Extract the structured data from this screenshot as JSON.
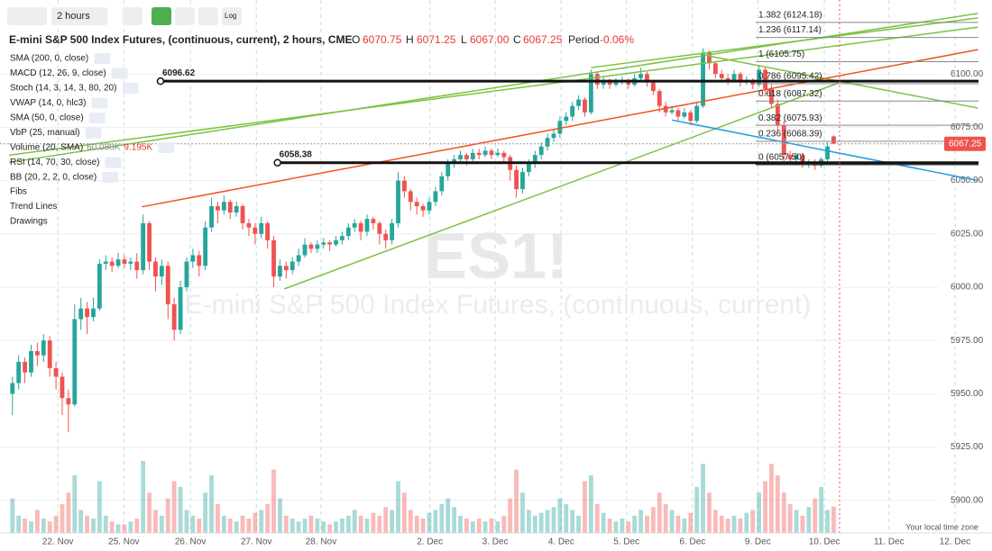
{
  "toolbar": {
    "interval": "2 hours",
    "log": "Log"
  },
  "header": {
    "title": "E-mini S&P 500 Index Futures, (continuous, current), 2 hours, CME",
    "o_key": "O",
    "open": "6070.75",
    "h_key": "H",
    "high": "6071.25",
    "l_key": "L",
    "low": "6067.00",
    "c_key": "C",
    "close": "6067.25",
    "period_key": "Period",
    "period": "-0.06%"
  },
  "indicators": [
    {
      "text": "SMA (200, 0, close)",
      "color": "#f57c00"
    },
    {
      "text": "MACD (12, 26, 9, close)",
      "color": "#9e8fd6"
    },
    {
      "text": "Stoch (14, 3, 14, 3, 80, 20)",
      "color": "#8e6bd1"
    },
    {
      "text": "VWAP (14, 0, hlc3)",
      "color": "#2f7de1"
    },
    {
      "text": "SMA (50, 0, close)",
      "color": "#4caf50"
    },
    {
      "text": "VbP (25, manual)",
      "color": "#1a237e"
    },
    {
      "text": "Volume (20, SMA)",
      "color": "#2f7de1",
      "extra": [
        "60.080K",
        "9.195K"
      ]
    },
    {
      "text": "RSI (14, 70, 30, close)",
      "color": "#1565c0"
    },
    {
      "text": "BB (20, 2, 2, 0, close)",
      "color": "#0d47a1"
    }
  ],
  "sections": [
    "Fibs",
    "Trend Lines",
    "Drawings"
  ],
  "watermark": {
    "symbol": "ES1!",
    "name": "E-mini S&P 500 Index Futures, (continuous, current)"
  },
  "footer": "Your local time zone",
  "chart_data": {
    "type": "candlestick",
    "xlim": [
      0,
      158
    ],
    "ylim": [
      5884.7,
      6134.7
    ],
    "xticks": [
      {
        "value": 9.3,
        "label": "22. Nov"
      },
      {
        "value": 19.9,
        "label": "25. Nov"
      },
      {
        "value": 30.6,
        "label": "26. Nov"
      },
      {
        "value": 41.2,
        "label": "27. Nov"
      },
      {
        "value": 51.6,
        "label": "28. Nov"
      },
      {
        "value": 69.1,
        "label": "2. Dec"
      },
      {
        "value": 79.6,
        "label": "3. Dec"
      },
      {
        "value": 90.2,
        "label": "4. Dec"
      },
      {
        "value": 100.7,
        "label": "5. Dec"
      },
      {
        "value": 111.3,
        "label": "6. Dec"
      },
      {
        "value": 121.8,
        "label": "9. Dec"
      },
      {
        "value": 132.5,
        "label": "10. Dec"
      },
      {
        "value": 142.9,
        "label": "11. Dec"
      },
      {
        "value": 153.5,
        "label": "12. Dec"
      }
    ],
    "yticks": [
      {
        "value": 6100,
        "label": "6100.00"
      },
      {
        "value": 6075,
        "label": "6075.00"
      },
      {
        "value": 6050,
        "label": "6050.00"
      },
      {
        "value": 6025,
        "label": "6025.00"
      },
      {
        "value": 6000,
        "label": "6000.00"
      },
      {
        "value": 5975,
        "label": "5975.00"
      },
      {
        "value": 5950,
        "label": "5950.00"
      },
      {
        "value": 5925,
        "label": "5925.00"
      },
      {
        "value": 5900,
        "label": "5900.00"
      }
    ],
    "grid": true,
    "up_color": "#26a69a",
    "down_color": "#ef5350",
    "x": [
      2,
      3,
      4,
      5,
      6,
      7,
      8,
      9,
      10,
      11,
      12,
      13,
      14,
      15,
      16,
      17,
      18,
      19,
      20,
      21,
      22,
      23,
      24,
      25,
      26,
      27,
      28,
      29,
      30,
      31,
      32,
      33,
      34,
      35,
      36,
      37,
      38,
      39,
      40,
      41,
      42,
      43,
      44,
      45,
      46,
      47,
      48,
      49,
      50,
      51,
      52,
      53,
      54,
      55,
      56,
      57,
      58,
      59,
      60,
      61,
      62,
      63,
      64,
      65,
      66,
      67,
      68,
      69,
      70,
      71,
      72,
      73,
      74,
      75,
      76,
      77,
      78,
      79,
      80,
      81,
      82,
      83,
      84,
      85,
      86,
      87,
      88,
      89,
      90,
      91,
      92,
      93,
      94,
      95,
      96,
      97,
      98,
      99,
      100,
      101,
      102,
      103,
      104,
      105,
      106,
      107,
      108,
      109,
      110,
      111,
      112,
      113,
      114,
      115,
      116,
      117,
      118,
      119,
      120,
      121,
      122,
      123,
      124,
      125,
      126,
      127,
      128,
      129,
      130,
      131,
      132,
      133,
      134
    ],
    "candles": [
      [
        5950,
        5958,
        5940,
        5955
      ],
      [
        5955,
        5968,
        5952,
        5965
      ],
      [
        5965,
        5967,
        5955,
        5960
      ],
      [
        5960,
        5973,
        5958,
        5970
      ],
      [
        5970,
        5974,
        5963,
        5968
      ],
      [
        5968,
        5978,
        5965,
        5975
      ],
      [
        5975,
        5977,
        5958,
        5962
      ],
      [
        5962,
        5965,
        5952,
        5958
      ],
      [
        5958,
        5960,
        5940,
        5948
      ],
      [
        5948,
        5952,
        5932,
        5945
      ],
      [
        5945,
        5992,
        5944,
        5985
      ],
      [
        5985,
        5995,
        5980,
        5990
      ],
      [
        5990,
        5993,
        5978,
        5986
      ],
      [
        5986,
        5995,
        5984,
        5990
      ],
      [
        5990,
        6013,
        5989,
        6011
      ],
      [
        6011,
        6015,
        6008,
        6012
      ],
      [
        6012,
        6014,
        6007,
        6010
      ],
      [
        6010,
        6016,
        6009,
        6013
      ],
      [
        6013,
        6015,
        6009,
        6011
      ],
      [
        6011,
        6014,
        6008,
        6012
      ],
      [
        6012,
        6016,
        6004,
        6008
      ],
      [
        6008,
        6034,
        6006,
        6030
      ],
      [
        6030,
        6031,
        6008,
        6012
      ],
      [
        6012,
        6014,
        5998,
        6005
      ],
      [
        6005,
        6013,
        6001,
        6010
      ],
      [
        6010,
        6012,
        5985,
        5992
      ],
      [
        5992,
        5995,
        5975,
        5980
      ],
      [
        5980,
        6003,
        5978,
        6000
      ],
      [
        6000,
        6014,
        5998,
        6012
      ],
      [
        6012,
        6018,
        6009,
        6015
      ],
      [
        6015,
        6017,
        6005,
        6010
      ],
      [
        6010,
        6031,
        6008,
        6028
      ],
      [
        6028,
        6042,
        6026,
        6038
      ],
      [
        6038,
        6040,
        6030,
        6036
      ],
      [
        6036,
        6043,
        6034,
        6040
      ],
      [
        6040,
        6041,
        6032,
        6035
      ],
      [
        6035,
        6040,
        6033,
        6038
      ],
      [
        6038,
        6039,
        6027,
        6030
      ],
      [
        6030,
        6032,
        6024,
        6028
      ],
      [
        6028,
        6030,
        6020,
        6025
      ],
      [
        6025,
        6033,
        6023,
        6030
      ],
      [
        6030,
        6031,
        6018,
        6022
      ],
      [
        6022,
        6024,
        6000,
        6005
      ],
      [
        6005,
        6013,
        6003,
        6010
      ],
      [
        6010,
        6012,
        6004,
        6008
      ],
      [
        6008,
        6014,
        6006,
        6012
      ],
      [
        6012,
        6018,
        6010,
        6015
      ],
      [
        6015,
        6023,
        6014,
        6020
      ],
      [
        6020,
        6021,
        6016,
        6018
      ],
      [
        6018,
        6022,
        6016,
        6020
      ],
      [
        6020,
        6023,
        6018,
        6021
      ],
      [
        6021,
        6022,
        6017,
        6020
      ],
      [
        6020,
        6024,
        6019,
        6022
      ],
      [
        6022,
        6026,
        6020,
        6024
      ],
      [
        6024,
        6030,
        6022,
        6028
      ],
      [
        6028,
        6032,
        6026,
        6030
      ],
      [
        6030,
        6031,
        6022,
        6026
      ],
      [
        6026,
        6034,
        6024,
        6032
      ],
      [
        6032,
        6033,
        6027,
        6030
      ],
      [
        6030,
        6031,
        6020,
        6025
      ],
      [
        6025,
        6027,
        6018,
        6022
      ],
      [
        6022,
        6032,
        6020,
        6030
      ],
      [
        6030,
        6054,
        6028,
        6050
      ],
      [
        6050,
        6052,
        6042,
        6045
      ],
      [
        6045,
        6046,
        6036,
        6040
      ],
      [
        6040,
        6042,
        6034,
        6038
      ],
      [
        6038,
        6039,
        6033,
        6036
      ],
      [
        6036,
        6042,
        6034,
        6040
      ],
      [
        6040,
        6047,
        6038,
        6045
      ],
      [
        6045,
        6054,
        6043,
        6052
      ],
      [
        6052,
        6060,
        6050,
        6058
      ],
      [
        6058,
        6062,
        6056,
        6060
      ],
      [
        6060,
        6064,
        6058,
        6062
      ],
      [
        6062,
        6063,
        6057,
        6060
      ],
      [
        6060,
        6065,
        6059,
        6063
      ],
      [
        6063,
        6065,
        6060,
        6062
      ],
      [
        6062,
        6066,
        6061,
        6064
      ],
      [
        6064,
        6065,
        6060,
        6062
      ],
      [
        6062,
        6065,
        6061,
        6063
      ],
      [
        6063,
        6064,
        6058,
        6061
      ],
      [
        6061,
        6062,
        6050,
        6055
      ],
      [
        6055,
        6057,
        6042,
        6046
      ],
      [
        6046,
        6056,
        6044,
        6054
      ],
      [
        6054,
        6060,
        6052,
        6058
      ],
      [
        6058,
        6064,
        6056,
        6062
      ],
      [
        6062,
        6068,
        6060,
        6066
      ],
      [
        6066,
        6072,
        6064,
        6070
      ],
      [
        6070,
        6074,
        6068,
        6072
      ],
      [
        6072,
        6080,
        6070,
        6078
      ],
      [
        6078,
        6082,
        6076,
        6080
      ],
      [
        6080,
        6087,
        6078,
        6085
      ],
      [
        6085,
        6090,
        6083,
        6088
      ],
      [
        6088,
        6089,
        6080,
        6082
      ],
      [
        6082,
        6102,
        6081,
        6100
      ],
      [
        6100,
        6101,
        6093,
        6095
      ],
      [
        6095,
        6099,
        6093,
        6097
      ],
      [
        6097,
        6098,
        6093,
        6095
      ],
      [
        6095,
        6098,
        6094,
        6096
      ],
      [
        6096,
        6099,
        6095,
        6097
      ],
      [
        6097,
        6098,
        6093,
        6095
      ],
      [
        6095,
        6100,
        6094,
        6098
      ],
      [
        6098,
        6103,
        6097,
        6100
      ],
      [
        6100,
        6101,
        6094,
        6096
      ],
      [
        6096,
        6097,
        6090,
        6092
      ],
      [
        6092,
        6093,
        6082,
        6085
      ],
      [
        6085,
        6087,
        6080,
        6082
      ],
      [
        6082,
        6085,
        6081,
        6083
      ],
      [
        6083,
        6084,
        6078,
        6080
      ],
      [
        6080,
        6084,
        6079,
        6082
      ],
      [
        6082,
        6083,
        6076,
        6078
      ],
      [
        6078,
        6087,
        6077,
        6085
      ],
      [
        6085,
        6112,
        6084,
        6110
      ],
      [
        6110,
        6111,
        6102,
        6105
      ],
      [
        6105,
        6106,
        6098,
        6100
      ],
      [
        6100,
        6102,
        6096,
        6098
      ],
      [
        6098,
        6100,
        6095,
        6097
      ],
      [
        6097,
        6102,
        6096,
        6100
      ],
      [
        6100,
        6101,
        6094,
        6096
      ],
      [
        6096,
        6099,
        6095,
        6097
      ],
      [
        6097,
        6098,
        6093,
        6095
      ],
      [
        6095,
        6104,
        6094,
        6102
      ],
      [
        6102,
        6103,
        6090,
        6093
      ],
      [
        6093,
        6095,
        6084,
        6086
      ],
      [
        6086,
        6088,
        6073,
        6076
      ],
      [
        6076,
        6078,
        6058,
        6062
      ],
      [
        6062,
        6064,
        6058,
        6060
      ],
      [
        6060,
        6063,
        6058,
        6062
      ],
      [
        6062,
        6063,
        6056,
        6058
      ],
      [
        6058,
        6060,
        6056,
        6059
      ],
      [
        6059,
        6060,
        6055,
        6057
      ],
      [
        6057,
        6061,
        6056,
        6060
      ],
      [
        6060,
        6068,
        6059,
        6066
      ],
      [
        6070.75,
        6071.25,
        6067,
        6067.25
      ]
    ],
    "volume": [
      12,
      6,
      5,
      4,
      8,
      5,
      4,
      6,
      10,
      14,
      20,
      8,
      6,
      5,
      18,
      6,
      4,
      3,
      3,
      4,
      5,
      25,
      14,
      8,
      6,
      12,
      18,
      16,
      8,
      6,
      5,
      14,
      20,
      10,
      6,
      5,
      4,
      6,
      5,
      7,
      8,
      10,
      22,
      12,
      6,
      5,
      4,
      5,
      6,
      5,
      4,
      3,
      4,
      5,
      6,
      8,
      6,
      5,
      7,
      6,
      9,
      8,
      18,
      14,
      8,
      6,
      5,
      7,
      8,
      10,
      12,
      9,
      6,
      5,
      4,
      5,
      4,
      5,
      4,
      6,
      12,
      22,
      14,
      8,
      6,
      7,
      8,
      9,
      12,
      10,
      8,
      6,
      18,
      20,
      10,
      7,
      5,
      4,
      5,
      4,
      6,
      8,
      6,
      9,
      14,
      10,
      8,
      6,
      5,
      7,
      16,
      24,
      14,
      8,
      6,
      5,
      6,
      5,
      7,
      8,
      14,
      18,
      24,
      20,
      14,
      10,
      8,
      6,
      9,
      12,
      16,
      8,
      9.195
    ],
    "levels": [
      {
        "value": 6096.62,
        "x": 25.8
      },
      {
        "value": 6058.38,
        "x": 44.6
      }
    ],
    "fib_levels": [
      {
        "value": 6124.18,
        "label": "1.382 (6124.18)"
      },
      {
        "value": 6117.14,
        "label": "1.236 (6117.14)"
      },
      {
        "value": 6105.75,
        "label": "1 (6105.75)"
      },
      {
        "value": 6095.42,
        "label": "0.786 (6095.42)"
      },
      {
        "value": 6087.32,
        "label": "0.618 (6087.32)"
      },
      {
        "value": 6075.93,
        "label": "0.382 (6075.93)"
      },
      {
        "value": 6068.39,
        "label": "0.236 (6068.39)"
      },
      {
        "value": 6057.5,
        "label": "0 (6057.50)"
      }
    ],
    "trend_lines": [
      {
        "color": "#7cc242",
        "points": [
          [
            1.45,
            6058.5
          ],
          [
            157.2,
            6128.4
          ]
        ]
      },
      {
        "color": "#7cc242",
        "points": [
          [
            1.45,
            6061.9
          ],
          [
            157.2,
            6122.0
          ]
        ]
      },
      {
        "color": "#7cc242",
        "points": [
          [
            45.7,
            5999.2
          ],
          [
            134.8,
            6095.8
          ]
        ]
      },
      {
        "color": "#7cc242",
        "points": [
          [
            95,
            6103
          ],
          [
            157.2,
            6126.3
          ]
        ]
      },
      {
        "color": "#7cc242",
        "points": [
          [
            113.8,
            6108.5
          ],
          [
            157.2,
            6084
          ]
        ]
      },
      {
        "color": "#f0531c",
        "points": [
          [
            22.8,
            6037.7
          ],
          [
            157.2,
            6111.4
          ]
        ]
      },
      {
        "color": "#1e9be0",
        "points": [
          [
            108,
            6078.4
          ],
          [
            157.2,
            6050.0
          ]
        ]
      }
    ]
  }
}
